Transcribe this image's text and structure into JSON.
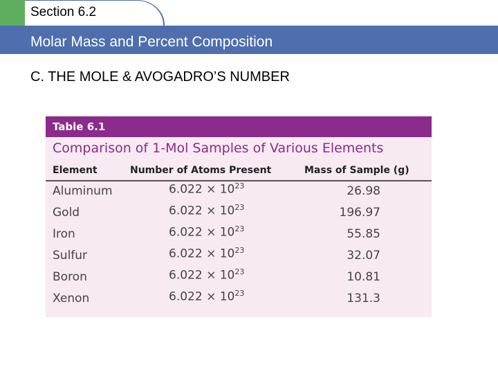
{
  "header": {
    "section": "Section 6.2",
    "subtitle": "Molar Mass and Percent Composition"
  },
  "heading": "C. THE MOLE & AVOGADRO’S NUMBER",
  "table": {
    "label": "Table 6.1",
    "title": "Comparison of 1-Mol Samples of Various Elements",
    "columns": [
      "Element",
      "Number of Atoms Present",
      "Mass of Sample (g)"
    ],
    "rows": [
      {
        "element": "Aluminum",
        "atoms": {
          "base": "6.022 × 10",
          "exponent": "23"
        },
        "mass": "26.98"
      },
      {
        "element": "Gold",
        "atoms": {
          "base": "6.022 × 10",
          "exponent": "23"
        },
        "mass": "196.97"
      },
      {
        "element": "Iron",
        "atoms": {
          "base": "6.022 × 10",
          "exponent": "23"
        },
        "mass": "55.85"
      },
      {
        "element": "Sulfur",
        "atoms": {
          "base": "6.022 × 10",
          "exponent": "23"
        },
        "mass": "32.07"
      },
      {
        "element": "Boron",
        "atoms": {
          "base": "6.022 × 10",
          "exponent": "23"
        },
        "mass": "10.81"
      },
      {
        "element": "Xenon",
        "atoms": {
          "base": "6.022 × 10",
          "exponent": "23"
        },
        "mass": "131.3"
      }
    ]
  }
}
